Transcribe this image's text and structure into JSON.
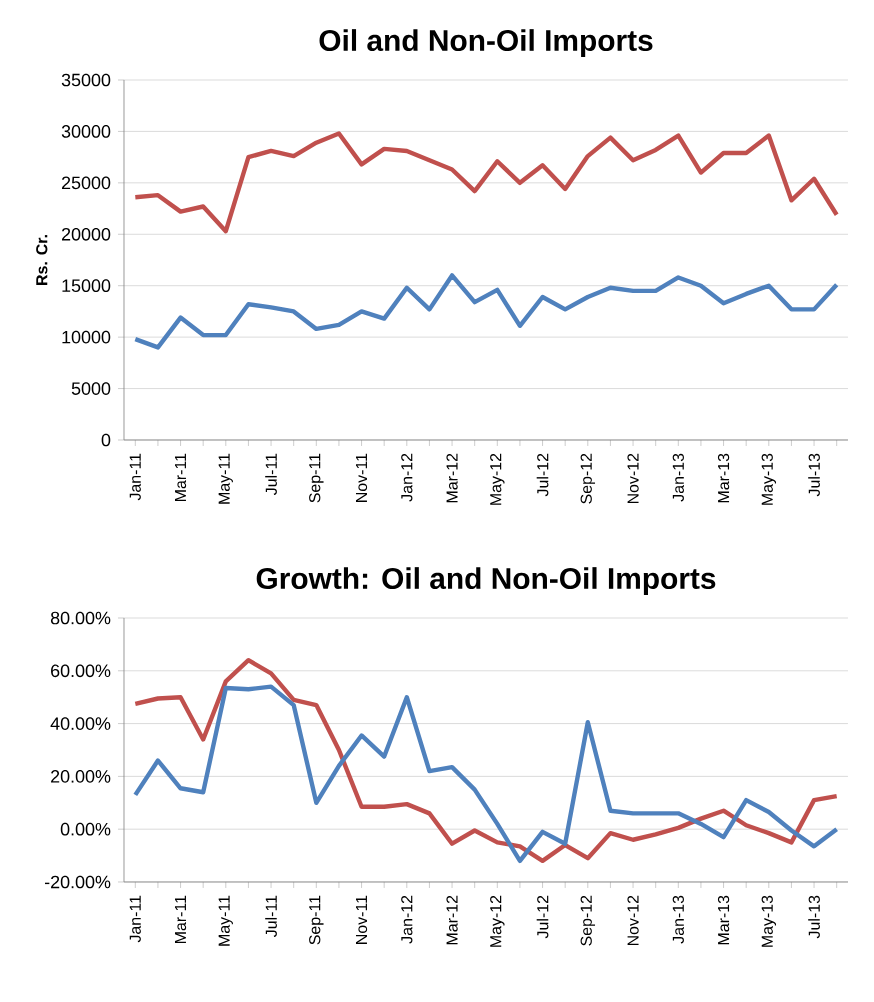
{
  "chart_data": [
    {
      "type": "line",
      "title": "Oil and Non-Oil Imports",
      "ylabel": "Rs. Cr.",
      "categories": [
        "Jan-11",
        null,
        "Mar-11",
        null,
        "May-11",
        null,
        "Jul-11",
        null,
        "Sep-11",
        null,
        "Nov-11",
        null,
        "Jan-12",
        null,
        "Mar-12",
        null,
        "May-12",
        null,
        "Jul-12",
        null,
        "Sep-12",
        null,
        "Nov-12",
        null,
        "Jan-13",
        null,
        "Mar-13",
        null,
        "May-13",
        null,
        "Jul-13",
        null
      ],
      "series": [
        {
          "color": "#c0504d",
          "values": [
            23600,
            23800,
            22200,
            22700,
            20300,
            27500,
            28100,
            27600,
            28900,
            29800,
            26800,
            28300,
            28100,
            27200,
            26300,
            24200,
            27100,
            25000,
            26700,
            24400,
            27600,
            29400,
            27200,
            28200,
            29600,
            26000,
            27900,
            27900,
            29600,
            23300,
            25400,
            21900
          ]
        },
        {
          "color": "#4f81bd",
          "values": [
            9800,
            9000,
            11900,
            10200,
            10200,
            13200,
            12900,
            12500,
            10800,
            11200,
            12500,
            11800,
            14800,
            12700,
            16000,
            13400,
            14600,
            11100,
            13900,
            12700,
            13900,
            14800,
            14500,
            14500,
            15800,
            15000,
            13300,
            14200,
            15000,
            12700,
            12700,
            15100
          ]
        }
      ],
      "ylim": [
        0,
        35000
      ],
      "yticks": [
        0,
        5000,
        10000,
        15000,
        20000,
        25000,
        30000,
        35000
      ],
      "grid": "y"
    },
    {
      "type": "line",
      "title": "Growth: Oil and Non-Oil Imports",
      "categories": [
        "Jan-11",
        null,
        "Mar-11",
        null,
        "May-11",
        null,
        "Jul-11",
        null,
        "Sep-11",
        null,
        "Nov-11",
        null,
        "Jan-12",
        null,
        "Mar-12",
        null,
        "May-12",
        null,
        "Jul-12",
        null,
        "Sep-12",
        null,
        "Nov-12",
        null,
        "Jan-13",
        null,
        "Mar-13",
        null,
        "May-13",
        null,
        "Jul-13",
        null
      ],
      "series": [
        {
          "color": "#c0504d",
          "values": [
            47.5,
            49.5,
            50,
            34,
            56,
            64,
            59,
            49,
            47,
            30,
            8.5,
            8.5,
            9.5,
            6,
            -5.5,
            -0.5,
            -5,
            -6.5,
            -12,
            -6,
            -11,
            -1.5,
            -4,
            -2,
            0.5,
            4,
            7,
            1.5,
            -1.5,
            -5,
            11,
            12.5
          ]
        },
        {
          "color": "#4f81bd",
          "values": [
            13,
            26,
            15.5,
            14,
            53.5,
            53,
            54,
            47,
            10,
            24,
            35.5,
            27.5,
            50,
            22,
            23.5,
            15,
            2,
            -12,
            -1,
            -5.5,
            40.5,
            7,
            6,
            6,
            6,
            2,
            -3,
            11,
            6.5,
            -0.5,
            -6.5,
            0
          ]
        }
      ],
      "ylim": [
        -20,
        80
      ],
      "yticks": [
        {
          "value": -20,
          "label": "-20.00%"
        },
        {
          "value": 0,
          "label": "0.00%"
        },
        {
          "value": 20,
          "label": "20.00%"
        },
        {
          "value": 40,
          "label": "40.00%"
        },
        {
          "value": 60,
          "label": "60.00%"
        },
        {
          "value": 80,
          "label": "80.00%"
        }
      ],
      "grid": "y"
    }
  ]
}
